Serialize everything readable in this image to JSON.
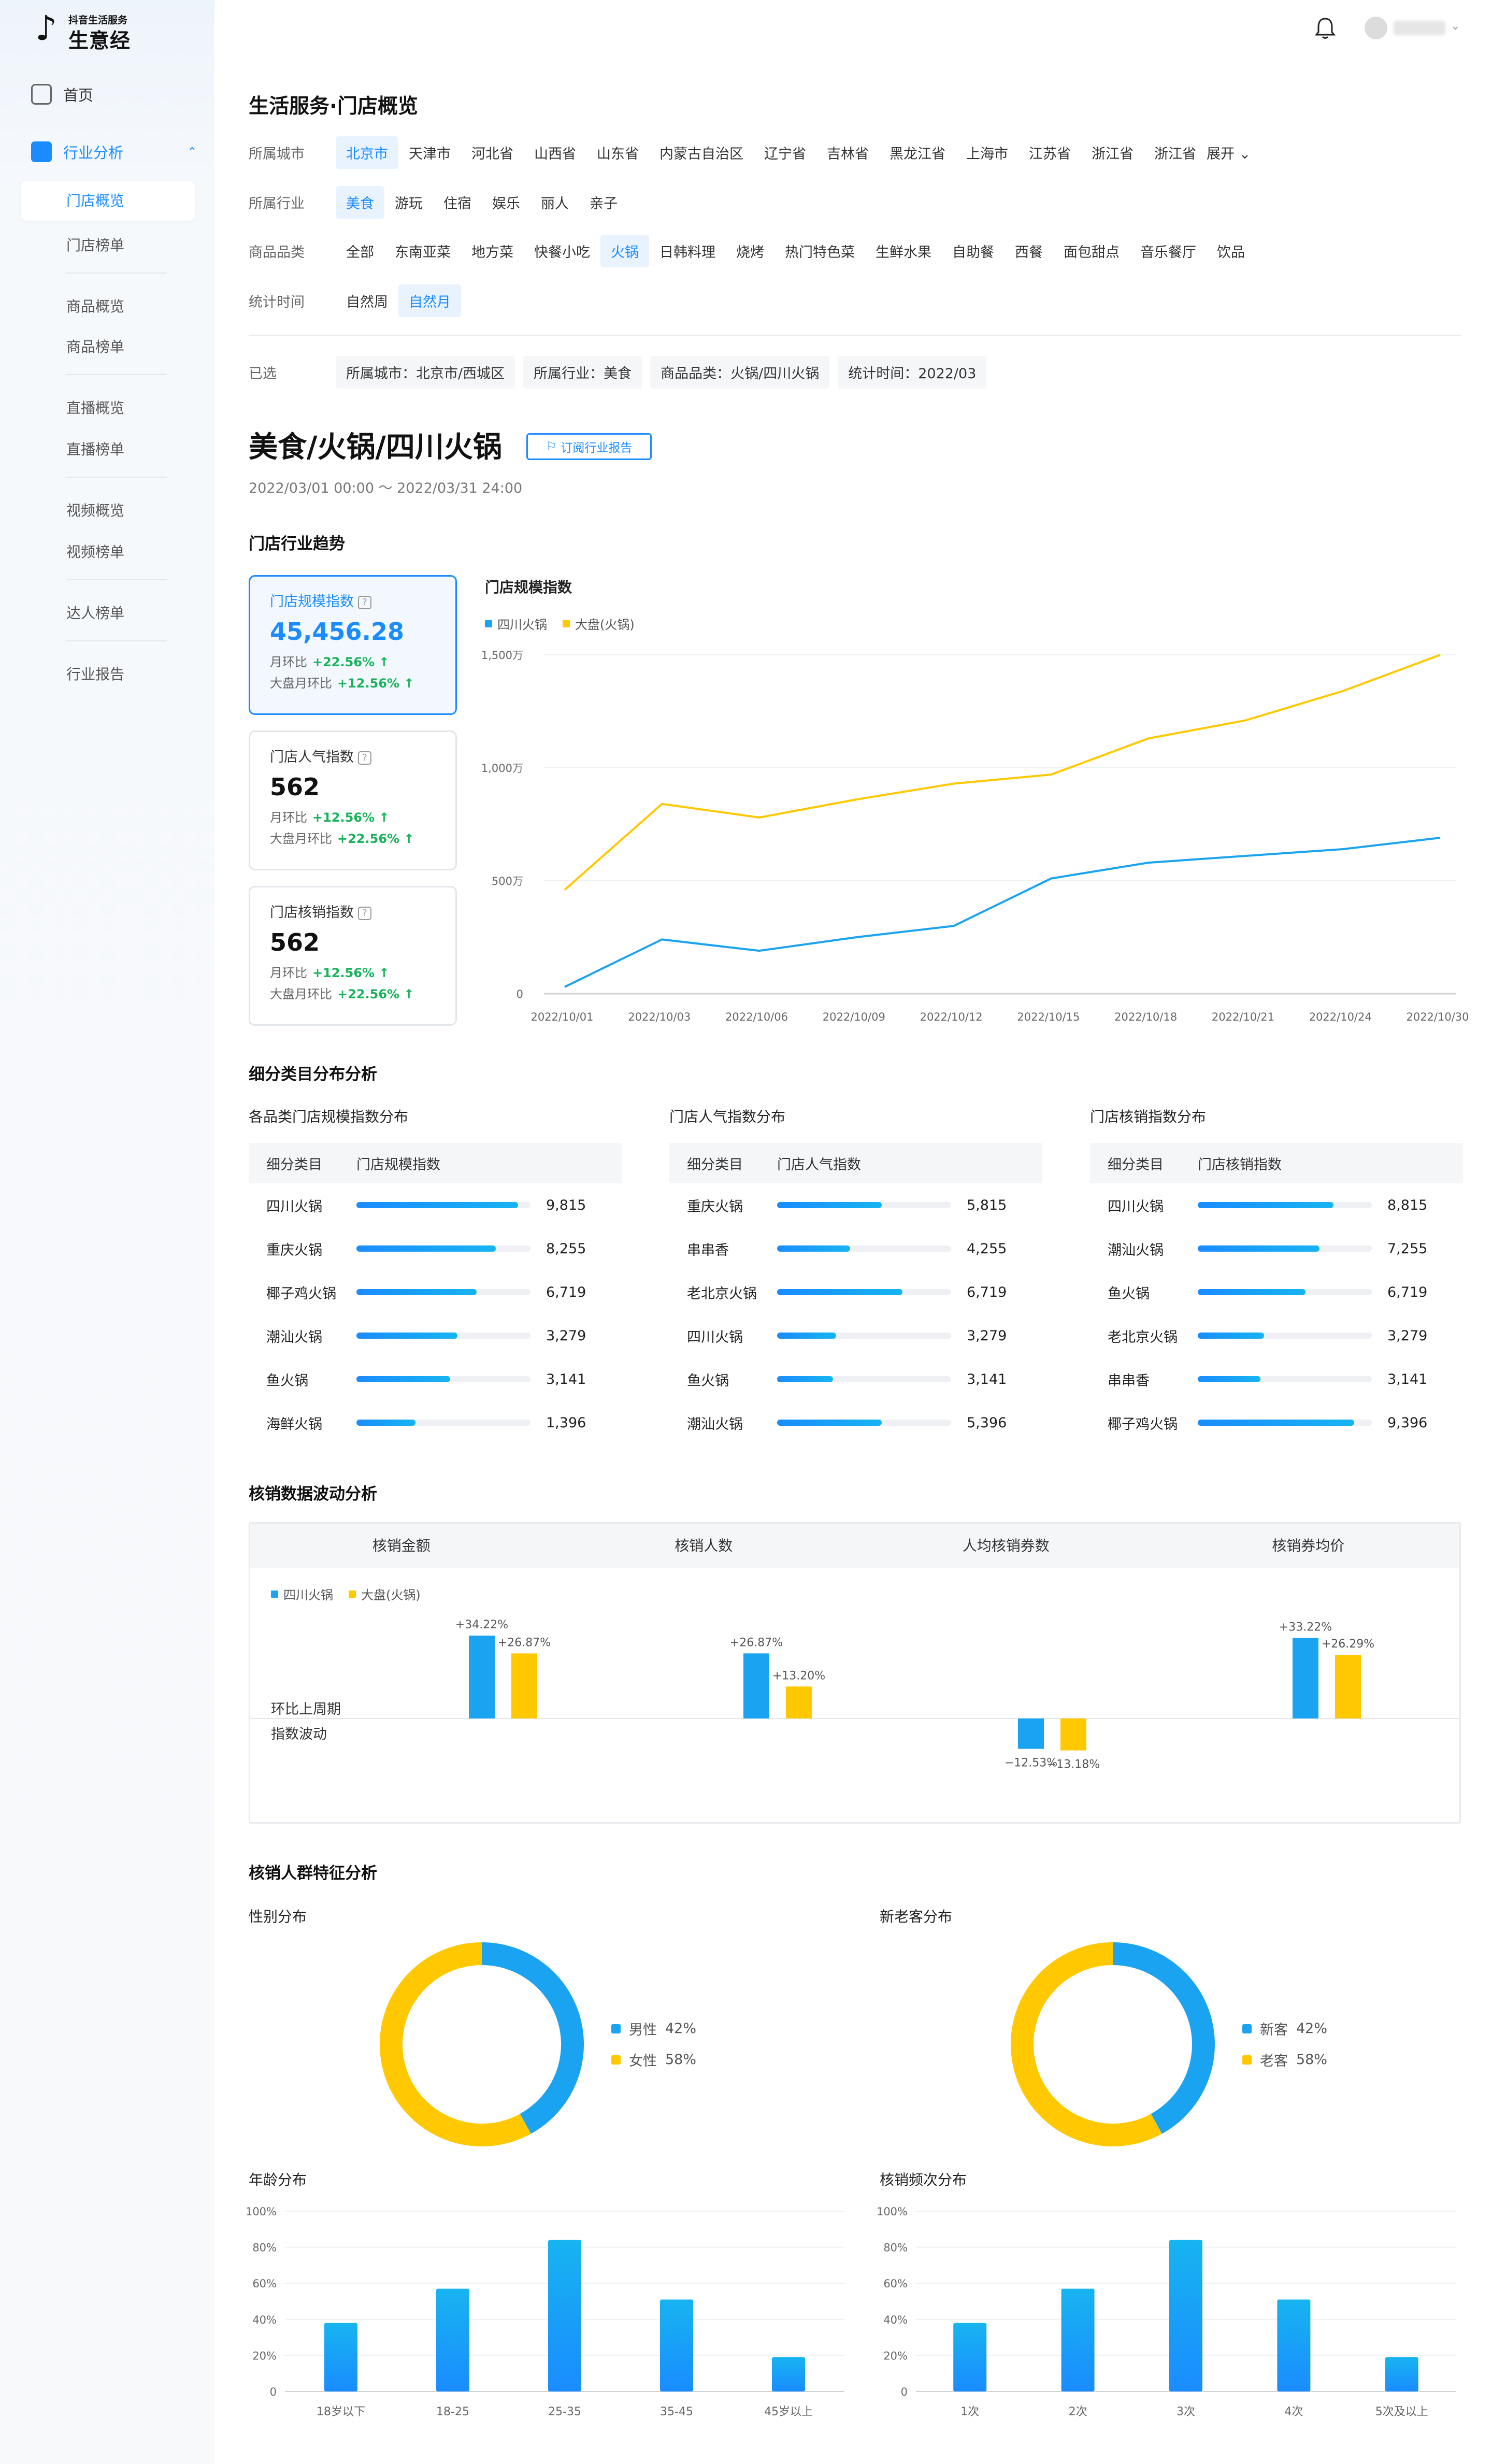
{
  "app": {
    "logo_small": "抖音生活服务",
    "logo_big": "生意经"
  },
  "sidebar": {
    "home": "首页",
    "group": "行业分析",
    "items": [
      "门店概览",
      "门店榜单",
      "商品概览",
      "商品榜单",
      "直播概览",
      "直播榜单",
      "视频概览",
      "视频榜单",
      "达人榜单",
      "行业报告"
    ]
  },
  "page": {
    "title": "生活服务·门店概览"
  },
  "filters": {
    "city": {
      "label": "所属城市",
      "options": [
        "北京市",
        "天津市",
        "河北省",
        "山西省",
        "山东省",
        "内蒙古自治区",
        "辽宁省",
        "吉林省",
        "黑龙江省",
        "上海市",
        "江苏省",
        "浙江省",
        "浙江省"
      ],
      "expand": "展开"
    },
    "industry": {
      "label": "所属行业",
      "options": [
        "美食",
        "游玩",
        "住宿",
        "娱乐",
        "丽人",
        "亲子"
      ]
    },
    "category": {
      "label": "商品品类",
      "options": [
        "全部",
        "东南亚菜",
        "地方菜",
        "快餐小吃",
        "火锅",
        "日韩料理",
        "烧烤",
        "热门特色菜",
        "生鲜水果",
        "自助餐",
        "西餐",
        "面包甜点",
        "音乐餐厅",
        "饮品"
      ]
    },
    "period": {
      "label": "统计时间",
      "options": [
        "自然周",
        "自然月"
      ]
    },
    "selected": {
      "label": "已选",
      "chips": [
        "所属城市：北京市/西城区",
        "所属行业：美食",
        "商品品类：火锅/四川火锅",
        "统计时间：2022/03"
      ]
    }
  },
  "header": {
    "title": "美食/火锅/四川火锅",
    "subscribe": "订阅行业报告",
    "date_range": "2022/03/01 00:00 ～ 2022/03/31 24:00"
  },
  "trend": {
    "section": "门店行业趋势",
    "cards": [
      {
        "title": "门店规模指数",
        "value": "45,456.28",
        "mom_label": "月环比",
        "mom": "+22.56%",
        "market_label": "大盘月环比",
        "market": "+12.56%"
      },
      {
        "title": "门店人气指数",
        "value": "562",
        "mom_label": "月环比",
        "mom": "+12.56%",
        "market_label": "大盘月环比",
        "market": "+22.56%"
      },
      {
        "title": "门店核销指数",
        "value": "562",
        "mom_label": "月环比",
        "mom": "+12.56%",
        "market_label": "大盘月环比",
        "market": "+22.56%"
      }
    ]
  },
  "chart_data": [
    {
      "type": "line",
      "title": "门店规模指数",
      "x": [
        "2022/10/01",
        "2022/10/03",
        "2022/10/06",
        "2022/10/09",
        "2022/10/12",
        "2022/10/15",
        "2022/10/18",
        "2022/10/21",
        "2022/10/24",
        "2022/10/30"
      ],
      "y_ticks": [
        "0",
        "500万",
        "1,000万",
        "1,500万"
      ],
      "ylim": [
        0,
        15000000
      ],
      "series": [
        {
          "name": "四川火锅",
          "color": "#1aa3f0",
          "values": [
            300000,
            2400000,
            1900000,
            2500000,
            3000000,
            5100000,
            5800000,
            6100000,
            6400000,
            6900000
          ]
        },
        {
          "name": "大盘(火锅)",
          "color": "#ffc800",
          "values": [
            4600000,
            8400000,
            7800000,
            8600000,
            9300000,
            9700000,
            11300000,
            12100000,
            13400000,
            15000000
          ]
        }
      ]
    },
    {
      "type": "bar",
      "title": "各品类门店规模指数分布",
      "columns": [
        "细分类目",
        "门店规模指数"
      ],
      "categories": [
        "四川火锅",
        "重庆火锅",
        "椰子鸡火锅",
        "潮汕火锅",
        "鱼火锅",
        "海鲜火锅"
      ],
      "values": [
        9815,
        8255,
        6719,
        3279,
        3141,
        1396
      ],
      "labels": [
        "9,815",
        "8,255",
        "6,719",
        "3,279",
        "3,141",
        "1,396"
      ],
      "fill": [
        0.93,
        0.8,
        0.69,
        0.58,
        0.54,
        0.34
      ]
    },
    {
      "type": "bar",
      "title": "门店人气指数分布",
      "columns": [
        "细分类目",
        "门店人气指数"
      ],
      "categories": [
        "重庆火锅",
        "串串香",
        "老北京火锅",
        "四川火锅",
        "鱼火锅",
        "潮汕火锅"
      ],
      "values": [
        5815,
        4255,
        6719,
        3279,
        3141,
        5396
      ],
      "labels": [
        "5,815",
        "4,255",
        "6,719",
        "3,279",
        "3,141",
        "5,396"
      ],
      "fill": [
        0.6,
        0.42,
        0.72,
        0.34,
        0.32,
        0.6
      ]
    },
    {
      "type": "bar",
      "title": "门店核销指数分布",
      "columns": [
        "细分类目",
        "门店核销指数"
      ],
      "categories": [
        "四川火锅",
        "潮汕火锅",
        "鱼火锅",
        "老北京火锅",
        "串串香",
        "椰子鸡火锅"
      ],
      "values": [
        8815,
        7255,
        6719,
        3279,
        3141,
        9396
      ],
      "labels": [
        "8,815",
        "7,255",
        "6,719",
        "3,279",
        "3,141",
        "9,396"
      ],
      "fill": [
        0.78,
        0.7,
        0.62,
        0.38,
        0.36,
        0.9
      ]
    },
    {
      "type": "bar",
      "title": "核销数据波动分析",
      "categories": [
        "核销金额",
        "核销人数",
        "人均核销券数",
        "核销券均价"
      ],
      "series": [
        {
          "name": "四川火锅",
          "color": "#1aa3f0",
          "values": [
            34.22,
            26.87,
            -12.53,
            33.22
          ],
          "labels": [
            "+34.22%",
            "+26.87%",
            "−12.53%",
            "+33.22%"
          ]
        },
        {
          "name": "大盘(火锅)",
          "color": "#ffc800",
          "values": [
            26.87,
            13.2,
            -13.18,
            26.29
          ],
          "labels": [
            "+26.87%",
            "+13.20%",
            "−13.18%",
            "+26.29%"
          ]
        }
      ],
      "row_labels": [
        "环比上周期",
        "指数波动"
      ]
    },
    {
      "type": "pie",
      "title": "性别分布",
      "labels": [
        "男性",
        "女性"
      ],
      "values": [
        42,
        58
      ],
      "value_labels": [
        "42%",
        "58%"
      ],
      "colors": [
        "#1aa3f0",
        "#ffc800"
      ]
    },
    {
      "type": "pie",
      "title": "新老客分布",
      "labels": [
        "新客",
        "老客"
      ],
      "values": [
        42,
        58
      ],
      "value_labels": [
        "42%",
        "58%"
      ],
      "colors": [
        "#1aa3f0",
        "#ffc800"
      ]
    },
    {
      "type": "bar",
      "title": "年龄分布",
      "categories": [
        "18岁以下",
        "18-25",
        "25-35",
        "35-45",
        "45岁以上"
      ],
      "values": [
        38,
        57,
        84,
        51,
        19
      ],
      "y_ticks": [
        "0",
        "20%",
        "40%",
        "60%",
        "80%",
        "100%"
      ],
      "ylim": [
        0,
        100
      ]
    },
    {
      "type": "bar",
      "title": "核销频次分布",
      "categories": [
        "1次",
        "2次",
        "3次",
        "4次",
        "5次及以上"
      ],
      "values": [
        38,
        57,
        84,
        51,
        19
      ],
      "y_ticks": [
        "0",
        "20%",
        "40%",
        "60%",
        "80%",
        "100%"
      ],
      "ylim": [
        0,
        100
      ]
    }
  ],
  "sections": {
    "category_dist": "细分类目分布分析",
    "verify_fluct": "核销数据波动分析",
    "crowd": "核销人群特征分析"
  },
  "colors": {
    "accent": "#1a8cff",
    "blue": "#1aa3f0",
    "yellow": "#ffc800",
    "green": "#18b35a"
  }
}
